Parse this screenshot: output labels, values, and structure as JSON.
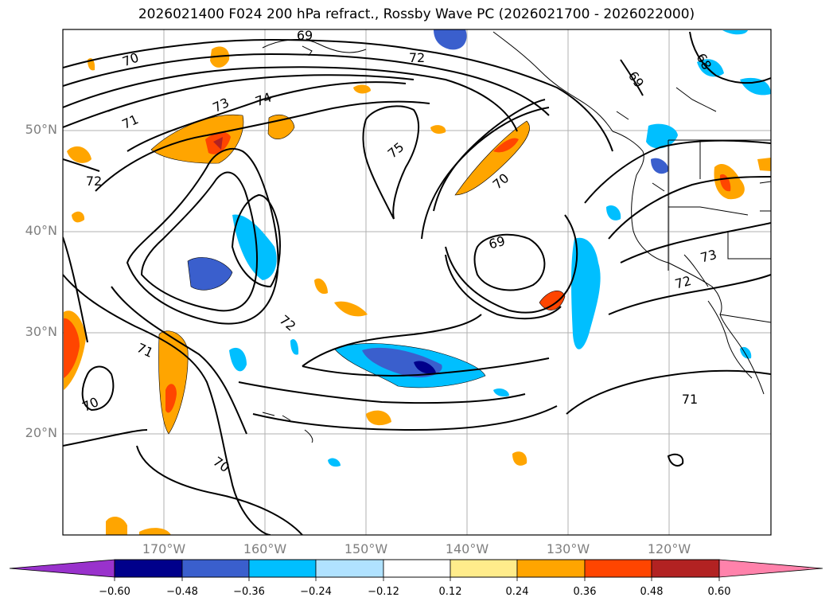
{
  "title": "2026021400 F024 200 hPa refract., Rossby Wave PC (2026021700 - 2026022000)",
  "map": {
    "lon_range": [
      -180,
      -110
    ],
    "lat_range": [
      10,
      60
    ],
    "lat_labels": [
      "50°N",
      "40°N",
      "30°N",
      "20°N"
    ],
    "lat_values": [
      50,
      40,
      30,
      20
    ],
    "lon_labels": [
      "170°W",
      "160°W",
      "150°W",
      "140°W",
      "130°W",
      "120°W"
    ],
    "lon_values": [
      -170,
      -160,
      -150,
      -140,
      -130,
      -120
    ],
    "grid": true,
    "coastlines": true,
    "country_borders": true,
    "state_borders": true
  },
  "contours": {
    "field": "200 hPa refractive index",
    "color": "#000000",
    "line_labels": [
      "69",
      "72",
      "68",
      "69",
      "70",
      "73",
      "74",
      "71",
      "72",
      "75",
      "70",
      "69",
      "73",
      "72",
      "72",
      "71",
      "70",
      "70",
      "71"
    ]
  },
  "shading": {
    "field": "Rossby Wave PC",
    "colors": [
      "#9932cc",
      "#00008b",
      "#3a5fcd",
      "#00bfff",
      "#b0e2ff",
      "#ffffff",
      "#ffec8b",
      "#ffa500",
      "#ff4500",
      "#b22222",
      "#ff82ab"
    ]
  },
  "colorbar": {
    "orientation": "horizontal",
    "extend": "both",
    "ticks": [
      "−0.60",
      "−0.48",
      "−0.36",
      "−0.24",
      "−0.12",
      "0.12",
      "0.24",
      "0.36",
      "0.48",
      "0.60"
    ]
  }
}
